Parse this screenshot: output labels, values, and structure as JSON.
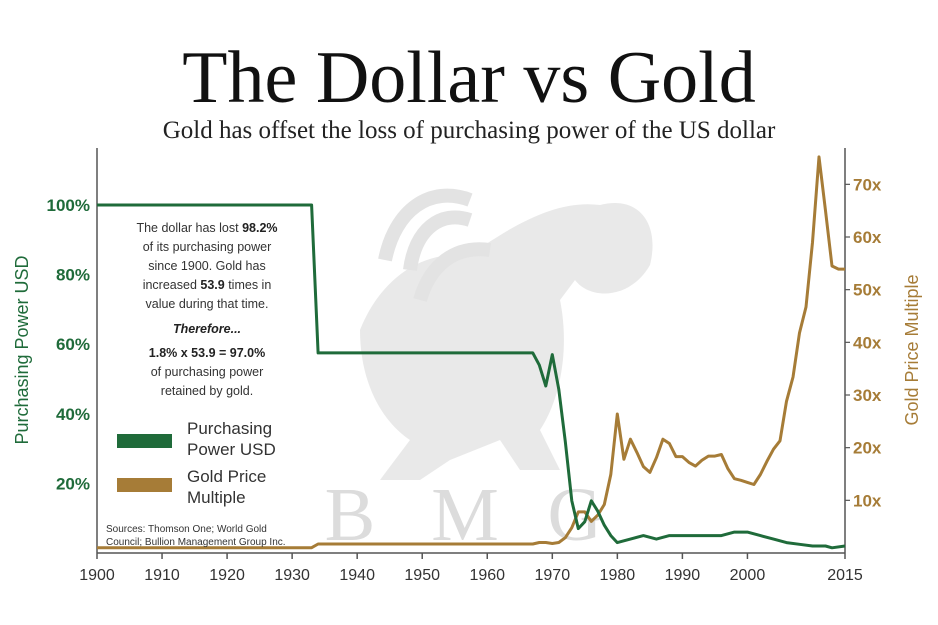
{
  "title": "The Dollar vs Gold",
  "subtitle": "Gold has offset the loss of purchasing power of the US dollar",
  "watermark": [
    "B",
    "M",
    "G"
  ],
  "note": {
    "lines": [
      [
        "The dollar has lost ",
        "98.2%"
      ],
      [
        "of its purchasing power"
      ],
      [
        "since 1900.  Gold has"
      ],
      [
        "increased ",
        "53.9",
        " times in"
      ],
      [
        "value during that time."
      ]
    ],
    "therefore": "Therefore...",
    "equation": "1.8% x 53.9 = 97.0%",
    "tail": [
      "of purchasing power",
      "retained by gold."
    ]
  },
  "sources": [
    "Sources: Thomson One; World Gold",
    "Council; Bullion Management Group Inc."
  ],
  "colors": {
    "purchasing": "#1f6b3a",
    "gold": "#a67c37",
    "axis": "#555555",
    "watermark": "#dcdcdc"
  },
  "chart_data": {
    "type": "line",
    "title": "The Dollar vs Gold",
    "subtitle": "Gold has offset the loss of purchasing power of the US dollar",
    "xlabel": "",
    "ylabel_left": "Purchasing Power USD",
    "ylabel_right": "Gold Price Multiple",
    "xlim": [
      1900,
      2015
    ],
    "ylim_left": [
      0,
      1.0
    ],
    "ylim_right": [
      0,
      75
    ],
    "x_ticks": [
      "1900",
      "1910",
      "1920",
      "1930",
      "1940",
      "1950",
      "1960",
      "1970",
      "1980",
      "1990",
      "2000",
      "2015"
    ],
    "x_tick_values": [
      1900,
      1910,
      1920,
      1930,
      1940,
      1950,
      1960,
      1970,
      1980,
      1990,
      2000,
      2015
    ],
    "y_ticks_left": [
      "20%",
      "40%",
      "60%",
      "80%",
      "100%"
    ],
    "y_tick_values_left": [
      0.2,
      0.4,
      0.6,
      0.8,
      1.0
    ],
    "y_ticks_right": [
      "10x",
      "20x",
      "30x",
      "40x",
      "50x",
      "60x",
      "70x"
    ],
    "y_tick_values_right": [
      10,
      20,
      30,
      40,
      50,
      60,
      70
    ],
    "legend_position": "left",
    "grid": false,
    "series": [
      {
        "name": "Purchasing Power USD",
        "axis": "left",
        "x": [
          1900,
          1933,
          1934,
          1967,
          1968,
          1969,
          1970,
          1971,
          1972,
          1973,
          1974,
          1975,
          1976,
          1977,
          1978,
          1979,
          1980,
          1982,
          1984,
          1986,
          1988,
          1990,
          1992,
          1994,
          1996,
          1998,
          2000,
          2002,
          2004,
          2006,
          2008,
          2010,
          2012,
          2013,
          2015
        ],
        "y": [
          1.0,
          1.0,
          0.575,
          0.575,
          0.54,
          0.48,
          0.57,
          0.47,
          0.32,
          0.15,
          0.07,
          0.09,
          0.15,
          0.12,
          0.08,
          0.05,
          0.03,
          0.04,
          0.05,
          0.04,
          0.05,
          0.05,
          0.05,
          0.05,
          0.05,
          0.06,
          0.06,
          0.05,
          0.04,
          0.03,
          0.025,
          0.02,
          0.02,
          0.015,
          0.02
        ]
      },
      {
        "name": "Gold Price Multiple",
        "axis": "right",
        "x": [
          1900,
          1933,
          1934,
          1967,
          1968,
          1969,
          1970,
          1971,
          1972,
          1973,
          1974,
          1975,
          1976,
          1977,
          1978,
          1979,
          1980,
          1981,
          1982,
          1983,
          1984,
          1985,
          1986,
          1987,
          1988,
          1989,
          1990,
          1991,
          1992,
          1993,
          1994,
          1995,
          1996,
          1997,
          1998,
          1999,
          2000,
          2001,
          2002,
          2003,
          2004,
          2005,
          2006,
          2007,
          2008,
          2009,
          2010,
          2011,
          2012,
          2013,
          2014,
          2015
        ],
        "y": [
          1.0,
          1.0,
          1.7,
          1.7,
          2.0,
          2.0,
          1.8,
          2.0,
          2.9,
          4.8,
          7.8,
          7.8,
          6.0,
          7.2,
          9.2,
          14.9,
          26.4,
          17.8,
          21.6,
          19.1,
          16.4,
          15.3,
          18.1,
          21.6,
          20.8,
          18.3,
          18.3,
          17.2,
          16.5,
          17.6,
          18.4,
          18.4,
          18.7,
          16.0,
          14.1,
          13.8,
          13.4,
          13.0,
          14.9,
          17.4,
          19.7,
          21.3,
          28.8,
          33.4,
          41.8,
          46.7,
          59.0,
          75.2,
          65.0,
          54.5,
          53.9,
          53.9
        ]
      }
    ]
  }
}
